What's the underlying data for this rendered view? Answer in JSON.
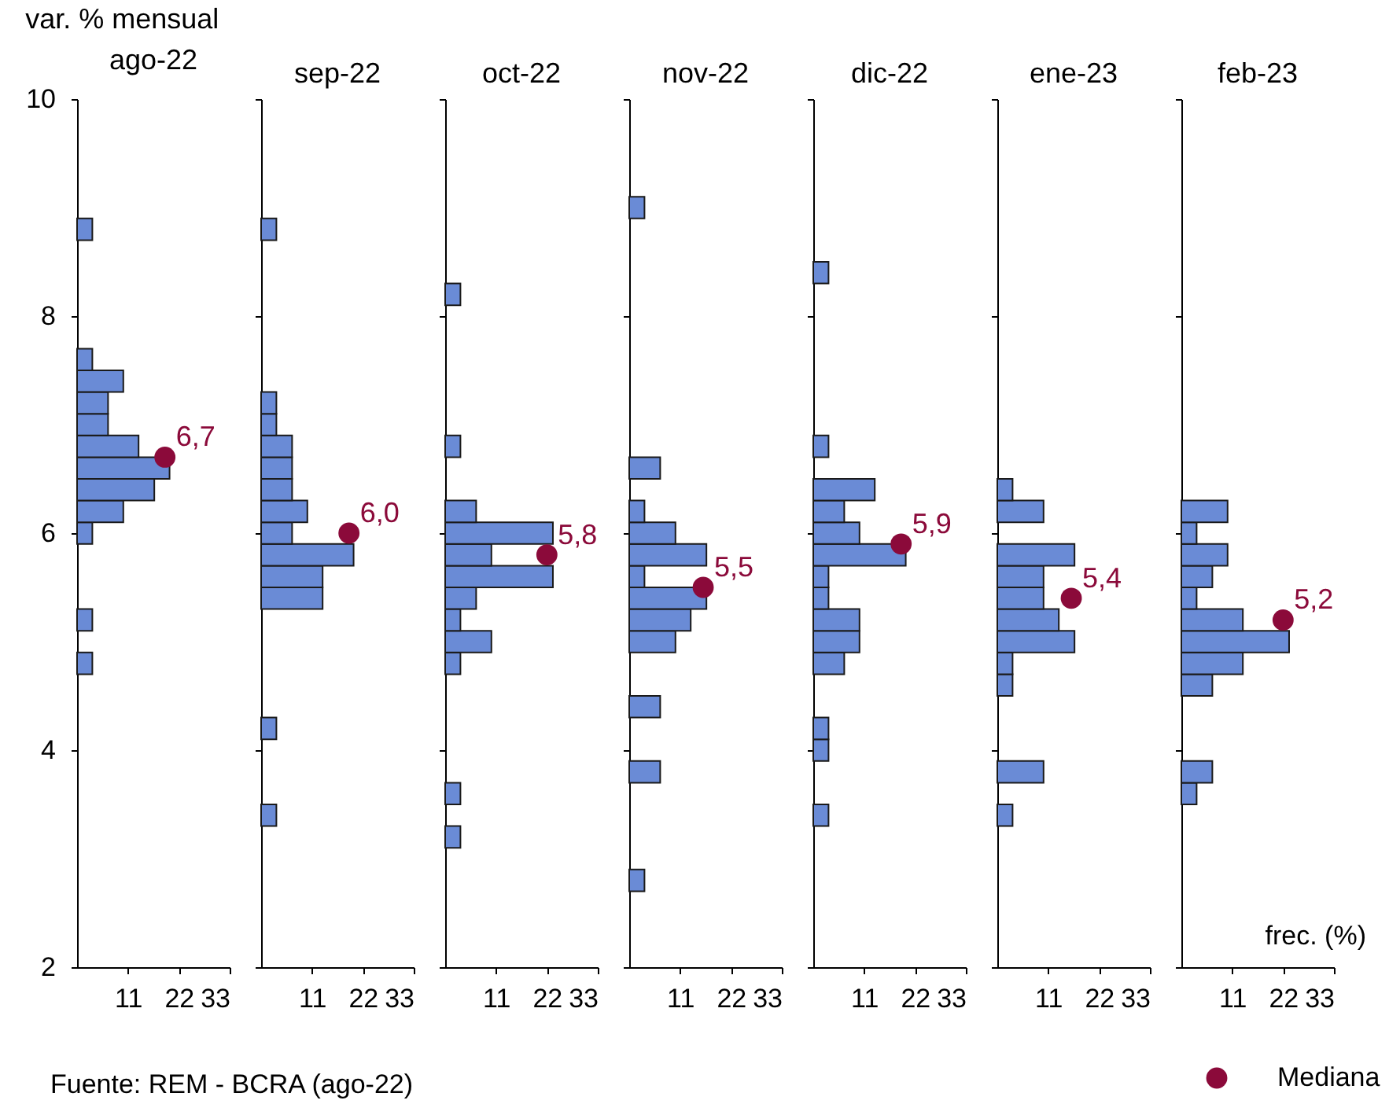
{
  "chart_data": [
    {
      "type": "histogram",
      "orientation": "horizontal",
      "title": "ago-22",
      "ylabel": "var. % mensual",
      "color": "#6a8bd6",
      "marker": "circle",
      "xlim": [
        0,
        33
      ],
      "xticks": [
        11,
        22,
        33
      ],
      "ylim": [
        2,
        10
      ],
      "yticks": [
        2,
        4,
        6,
        8,
        10
      ],
      "bins": [
        2.7,
        2.9,
        3.1,
        3.3,
        3.5,
        3.7,
        3.9,
        4.1,
        4.3,
        4.5,
        4.7,
        4.9,
        5.1,
        5.3,
        5.5,
        5.7,
        5.9,
        6.1,
        6.3,
        6.5,
        6.7,
        6.9,
        7.1,
        7.3,
        7.5,
        7.7,
        7.9,
        8.1,
        8.3,
        8.5,
        8.7,
        8.9,
        9.1
      ],
      "values": [
        0,
        0,
        0,
        0,
        0,
        0,
        0,
        0,
        0,
        0,
        3.3,
        0,
        3.3,
        0,
        0,
        0,
        3.3,
        10,
        16.7,
        20,
        13.3,
        6.7,
        6.7,
        10,
        3.3,
        0,
        0,
        0,
        0,
        0,
        3.3,
        0
      ],
      "annotations": [
        "Fuente: REM - BCRA (ago-22)",
        {
          "text": "6,7",
          "x": 19,
          "y": 6.7
        }
      ],
      "series": [
        {
          "type": "scatter",
          "color": "#8b0a3a",
          "x": [
            6.7
          ],
          "values": [
            19
          ]
        }
      ]
    },
    {
      "type": "histogram",
      "orientation": "horizontal",
      "title": "sep-22",
      "tick_labels": "x",
      "color": "#6a8bd6",
      "marker": "circle",
      "xlim": [
        0,
        33
      ],
      "xticks": [
        11,
        22,
        33
      ],
      "ylim": [
        2,
        10
      ],
      "yticks": [
        2,
        4,
        6,
        8,
        10
      ],
      "bins": [
        2.7,
        2.9,
        3.1,
        3.3,
        3.5,
        3.7,
        3.9,
        4.1,
        4.3,
        4.5,
        4.7,
        4.9,
        5.1,
        5.3,
        5.5,
        5.7,
        5.9,
        6.1,
        6.3,
        6.5,
        6.7,
        6.9,
        7.1,
        7.3,
        7.5,
        7.7,
        7.9,
        8.1,
        8.3,
        8.5,
        8.7,
        8.9,
        9.1
      ],
      "values": [
        0,
        0,
        0,
        3.3,
        0,
        0,
        0,
        3.3,
        0,
        0,
        0,
        0,
        0,
        13.3,
        13.3,
        20,
        6.7,
        10,
        6.7,
        6.7,
        6.7,
        3.3,
        3.3,
        0,
        0,
        0,
        0,
        0,
        0,
        0,
        3.3,
        0
      ],
      "annotations": [
        {
          "text": "6,0",
          "x": 19,
          "y": 6.0
        }
      ],
      "series": [
        {
          "type": "scatter",
          "color": "#8b0a3a",
          "x": [
            6.0
          ],
          "values": [
            19
          ]
        }
      ]
    },
    {
      "type": "histogram",
      "orientation": "horizontal",
      "title": "oct-22",
      "tick_labels": "x",
      "color": "#6a8bd6",
      "marker": "circle",
      "xlim": [
        0,
        33
      ],
      "xticks": [
        11,
        22,
        33
      ],
      "ylim": [
        2,
        10
      ],
      "yticks": [
        2,
        4,
        6,
        8,
        10
      ],
      "bins": [
        2.7,
        2.9,
        3.1,
        3.3,
        3.5,
        3.7,
        3.9,
        4.1,
        4.3,
        4.5,
        4.7,
        4.9,
        5.1,
        5.3,
        5.5,
        5.7,
        5.9,
        6.1,
        6.3,
        6.5,
        6.7,
        6.9,
        7.1,
        7.3,
        7.5,
        7.7,
        7.9,
        8.1,
        8.3,
        8.5,
        8.7,
        8.9,
        9.1
      ],
      "values": [
        0,
        0,
        3.3,
        0,
        3.3,
        0,
        0,
        0,
        0,
        0,
        3.3,
        10,
        3.3,
        6.7,
        23.3,
        10,
        23.3,
        6.7,
        0,
        0,
        3.3,
        0,
        0,
        0,
        0,
        0,
        0,
        3.3,
        0,
        0,
        0,
        0
      ],
      "annotations": [
        {
          "text": "5,8",
          "x": 22,
          "y": 5.8
        }
      ],
      "series": [
        {
          "type": "scatter",
          "color": "#8b0a3a",
          "x": [
            5.8
          ],
          "values": [
            22
          ]
        }
      ]
    },
    {
      "type": "histogram",
      "orientation": "horizontal",
      "title": "nov-22",
      "tick_labels": "x",
      "color": "#6a8bd6",
      "marker": "circle",
      "xlim": [
        0,
        33
      ],
      "xticks": [
        11,
        22,
        33
      ],
      "ylim": [
        2,
        10
      ],
      "yticks": [
        2,
        4,
        6,
        8,
        10
      ],
      "bins": [
        2.7,
        2.9,
        3.1,
        3.3,
        3.5,
        3.7,
        3.9,
        4.1,
        4.3,
        4.5,
        4.7,
        4.9,
        5.1,
        5.3,
        5.5,
        5.7,
        5.9,
        6.1,
        6.3,
        6.5,
        6.7,
        6.9,
        7.1,
        7.3,
        7.5,
        7.7,
        7.9,
        8.1,
        8.3,
        8.5,
        8.7,
        8.9,
        9.1
      ],
      "values": [
        3.3,
        0,
        0,
        0,
        0,
        6.7,
        0,
        0,
        6.7,
        0,
        0,
        10,
        13.3,
        16.7,
        3.3,
        16.7,
        10,
        3.3,
        0,
        6.7,
        0,
        0,
        0,
        0,
        0,
        0,
        0,
        0,
        0,
        0,
        0,
        3.3
      ],
      "annotations": [
        {
          "text": "5,5",
          "x": 16,
          "y": 5.5
        }
      ],
      "series": [
        {
          "type": "scatter",
          "color": "#8b0a3a",
          "x": [
            5.5
          ],
          "values": [
            16
          ]
        }
      ]
    },
    {
      "type": "histogram",
      "orientation": "horizontal",
      "title": "dic-22",
      "tick_labels": "x",
      "color": "#6a8bd6",
      "marker": "circle",
      "xlim": [
        0,
        33
      ],
      "xticks": [
        11,
        22,
        33
      ],
      "ylim": [
        2,
        10
      ],
      "yticks": [
        2,
        4,
        6,
        8,
        10
      ],
      "bins": [
        2.7,
        2.9,
        3.1,
        3.3,
        3.5,
        3.7,
        3.9,
        4.1,
        4.3,
        4.5,
        4.7,
        4.9,
        5.1,
        5.3,
        5.5,
        5.7,
        5.9,
        6.1,
        6.3,
        6.5,
        6.7,
        6.9,
        7.1,
        7.3,
        7.5,
        7.7,
        7.9,
        8.1,
        8.3,
        8.5,
        8.7,
        8.9,
        9.1
      ],
      "values": [
        0,
        0,
        0,
        3.3,
        0,
        0,
        3.3,
        3.3,
        0,
        0,
        6.7,
        10,
        10,
        3.3,
        3.3,
        20,
        10,
        6.7,
        13.3,
        0,
        3.3,
        0,
        0,
        0,
        0,
        0,
        0,
        0,
        3.3,
        0,
        0,
        0
      ],
      "annotations": [
        {
          "text": "5,9",
          "x": 19,
          "y": 5.9
        }
      ],
      "series": [
        {
          "type": "scatter",
          "color": "#8b0a3a",
          "x": [
            5.9
          ],
          "values": [
            19
          ]
        }
      ]
    },
    {
      "type": "histogram",
      "orientation": "horizontal",
      "title": "ene-23",
      "tick_labels": "x",
      "color": "#6a8bd6",
      "marker": "circle",
      "xlim": [
        0,
        33
      ],
      "xticks": [
        11,
        22,
        33
      ],
      "ylim": [
        2,
        10
      ],
      "yticks": [
        2,
        4,
        6,
        8,
        10
      ],
      "bins": [
        2.7,
        2.9,
        3.1,
        3.3,
        3.5,
        3.7,
        3.9,
        4.1,
        4.3,
        4.5,
        4.7,
        4.9,
        5.1,
        5.3,
        5.5,
        5.7,
        5.9,
        6.1,
        6.3,
        6.5,
        6.7,
        6.9,
        7.1,
        7.3,
        7.5,
        7.7,
        7.9,
        8.1,
        8.3,
        8.5,
        8.7,
        8.9,
        9.1
      ],
      "values": [
        0,
        0,
        0,
        3.3,
        0,
        10,
        0,
        0,
        0,
        3.3,
        3.3,
        16.7,
        13.3,
        10,
        10,
        16.7,
        0,
        10,
        3.3,
        0,
        0,
        0,
        0,
        0,
        0,
        0,
        0,
        0,
        0,
        0,
        0,
        0
      ],
      "annotations": [
        {
          "text": "5,4",
          "x": 16,
          "y": 5.4
        }
      ],
      "series": [
        {
          "type": "scatter",
          "color": "#8b0a3a",
          "x": [
            5.4
          ],
          "values": [
            16
          ]
        }
      ]
    },
    {
      "type": "histogram",
      "orientation": "horizontal",
      "title": "feb-23",
      "xlabel": "frec. (%)",
      "tick_labels": "x",
      "legend": "bottom right",
      "color": "#6a8bd6",
      "marker": "circle",
      "xlim": [
        0,
        33
      ],
      "xticks": [
        11,
        22,
        33
      ],
      "ylim": [
        2,
        10
      ],
      "yticks": [
        2,
        4,
        6,
        8,
        10
      ],
      "bins": [
        2.7,
        2.9,
        3.1,
        3.3,
        3.5,
        3.7,
        3.9,
        4.1,
        4.3,
        4.5,
        4.7,
        4.9,
        5.1,
        5.3,
        5.5,
        5.7,
        5.9,
        6.1,
        6.3,
        6.5,
        6.7,
        6.9,
        7.1,
        7.3,
        7.5,
        7.7,
        7.9,
        8.1,
        8.3,
        8.5,
        8.7,
        8.9,
        9.1
      ],
      "values": [
        0,
        0,
        0,
        0,
        3.3,
        6.7,
        0,
        0,
        0,
        6.7,
        13.3,
        23.3,
        13.3,
        3.3,
        6.7,
        10,
        3.3,
        10,
        0,
        0,
        0,
        0,
        0,
        0,
        0,
        0,
        0,
        0,
        0,
        0,
        0,
        0
      ],
      "annotations": [
        {
          "text": "5,2",
          "x": 22,
          "y": 5.2
        }
      ],
      "series": [
        {
          "type": "scatter",
          "name": "Mediana",
          "color": "#8b0a3a",
          "x": [
            5.2
          ],
          "values": [
            22
          ]
        }
      ]
    }
  ]
}
